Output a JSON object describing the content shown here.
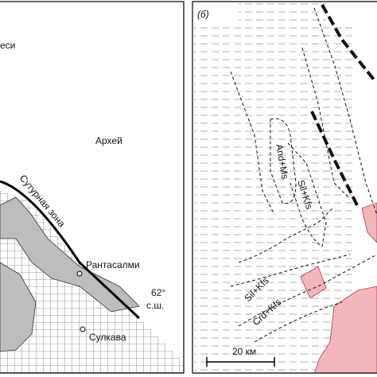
{
  "left_panel": {
    "region_partial": "еси",
    "archean": "Архей",
    "suture": "Сутурная зона",
    "town1": "Рантасалми",
    "latitude": "62°",
    "latitude_unit": "с.ш.",
    "town2": "Сулкава"
  },
  "right_panel": {
    "label": "(б)",
    "zones": [
      "And+Ms",
      "Sil+Kfs",
      "Sil+Kfs",
      "Crd+Kfs"
    ],
    "scale": "20 км"
  }
}
